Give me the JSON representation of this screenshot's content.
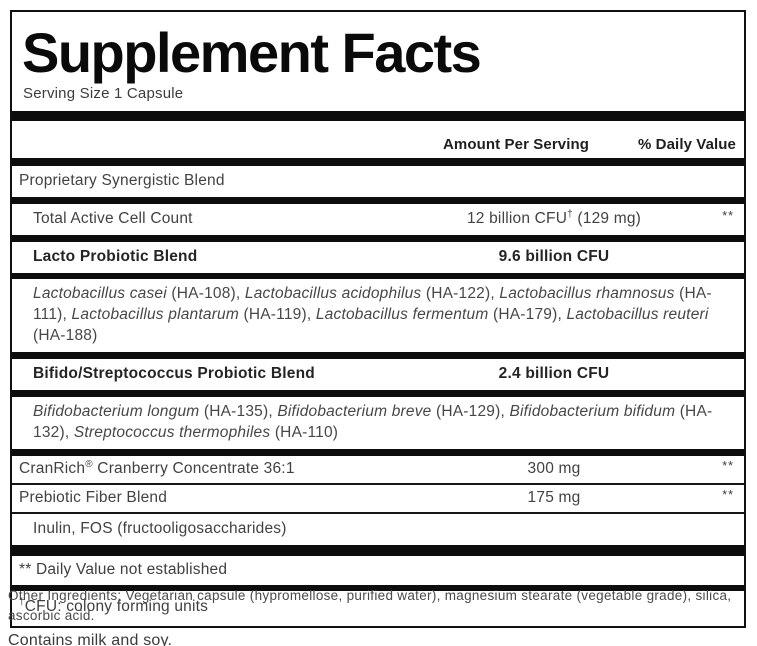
{
  "panel": {
    "title": "Supplement Facts",
    "serving_size": "Serving Size 1 Capsule",
    "header": {
      "amount_label": "Amount Per Serving",
      "daily_value_label": "% Daily Value"
    },
    "rows": [
      {
        "type": "section",
        "separator": "thick",
        "name": [
          {
            "t": "Proprietary Synergistic Blend"
          }
        ]
      },
      {
        "type": "item",
        "indent": true,
        "separator": "thick",
        "name": [
          {
            "t": "Total Active Cell Count"
          }
        ],
        "amount": [
          {
            "t": "12 billion CFU"
          },
          {
            "t": "†",
            "sup": true
          },
          {
            "t": " (129 mg)"
          }
        ],
        "dv": "**"
      },
      {
        "type": "item",
        "indent": true,
        "bold": true,
        "separator": "md",
        "name": [
          {
            "t": "Lacto Probiotic Blend"
          }
        ],
        "amount": [
          {
            "t": "9.6 billion CFU"
          }
        ],
        "dv": ""
      },
      {
        "type": "detail",
        "separator": "thick",
        "name": [
          {
            "t": "Lactobacillus casei",
            "i": true
          },
          {
            "t": " (HA-108), "
          },
          {
            "t": "Lactobacillus acidophilus",
            "i": true
          },
          {
            "t": " (HA-122), "
          },
          {
            "t": "Lactobacillus rhamnosus",
            "i": true
          },
          {
            "t": " (HA-111), "
          },
          {
            "t": "Lactobacillus plantarum",
            "i": true
          },
          {
            "t": " (HA-119), "
          },
          {
            "t": "Lactobacillus fermentum",
            "i": true
          },
          {
            "t": " (HA-179), "
          },
          {
            "t": "Lactobacillus reuteri",
            "i": true
          },
          {
            "t": " (HA-188)"
          }
        ]
      },
      {
        "type": "item",
        "indent": true,
        "bold": true,
        "separator": "thick",
        "name": [
          {
            "t": "Bifido/Streptococcus Probiotic Blend"
          }
        ],
        "amount": [
          {
            "t": "2.4 billion CFU"
          }
        ],
        "dv": ""
      },
      {
        "type": "detail",
        "separator": "thick",
        "name": [
          {
            "t": "Bifidobacterium longum",
            "i": true
          },
          {
            "t": " (HA-135), "
          },
          {
            "t": "Bifidobacterium breve",
            "i": true
          },
          {
            "t": " (HA-129), "
          },
          {
            "t": "Bifidobacterium bifidum",
            "i": true
          },
          {
            "t": " (HA-132), "
          },
          {
            "t": "Streptococcus thermophiles",
            "i": true
          },
          {
            "t": " (HA-110)"
          }
        ]
      },
      {
        "type": "item",
        "tight": true,
        "separator": "thin",
        "name": [
          {
            "t": "CranRich"
          },
          {
            "t": "®",
            "sup": true
          },
          {
            "t": " Cranberry Concentrate 36:1"
          }
        ],
        "amount": [
          {
            "t": "300 mg"
          }
        ],
        "dv": "**"
      },
      {
        "type": "item",
        "tight": true,
        "separator": "thin",
        "name": [
          {
            "t": "Prebiotic Fiber Blend"
          }
        ],
        "amount": [
          {
            "t": "175 mg"
          }
        ],
        "dv": "**"
      },
      {
        "type": "item",
        "indent": true,
        "separator": "tall",
        "name": [
          {
            "t": "Inulin, FOS (fructooligosaccharides)"
          }
        ]
      }
    ],
    "footnotes": [
      {
        "separator": "md",
        "text": [
          {
            "t": "** Daily Value not established"
          }
        ]
      },
      {
        "separator": "none",
        "text": [
          {
            "t": "†",
            "sup": true
          },
          {
            "t": "CFU: colony forming units"
          }
        ]
      }
    ]
  },
  "below": {
    "other_ingredients_lines": [
      "Other Ingredients: Vegetarian capsule (hypromellose, purified water), magnesium stearate (vegetable grade), silica,",
      "ascorbic acid."
    ],
    "allergen": "Contains milk and soy."
  }
}
